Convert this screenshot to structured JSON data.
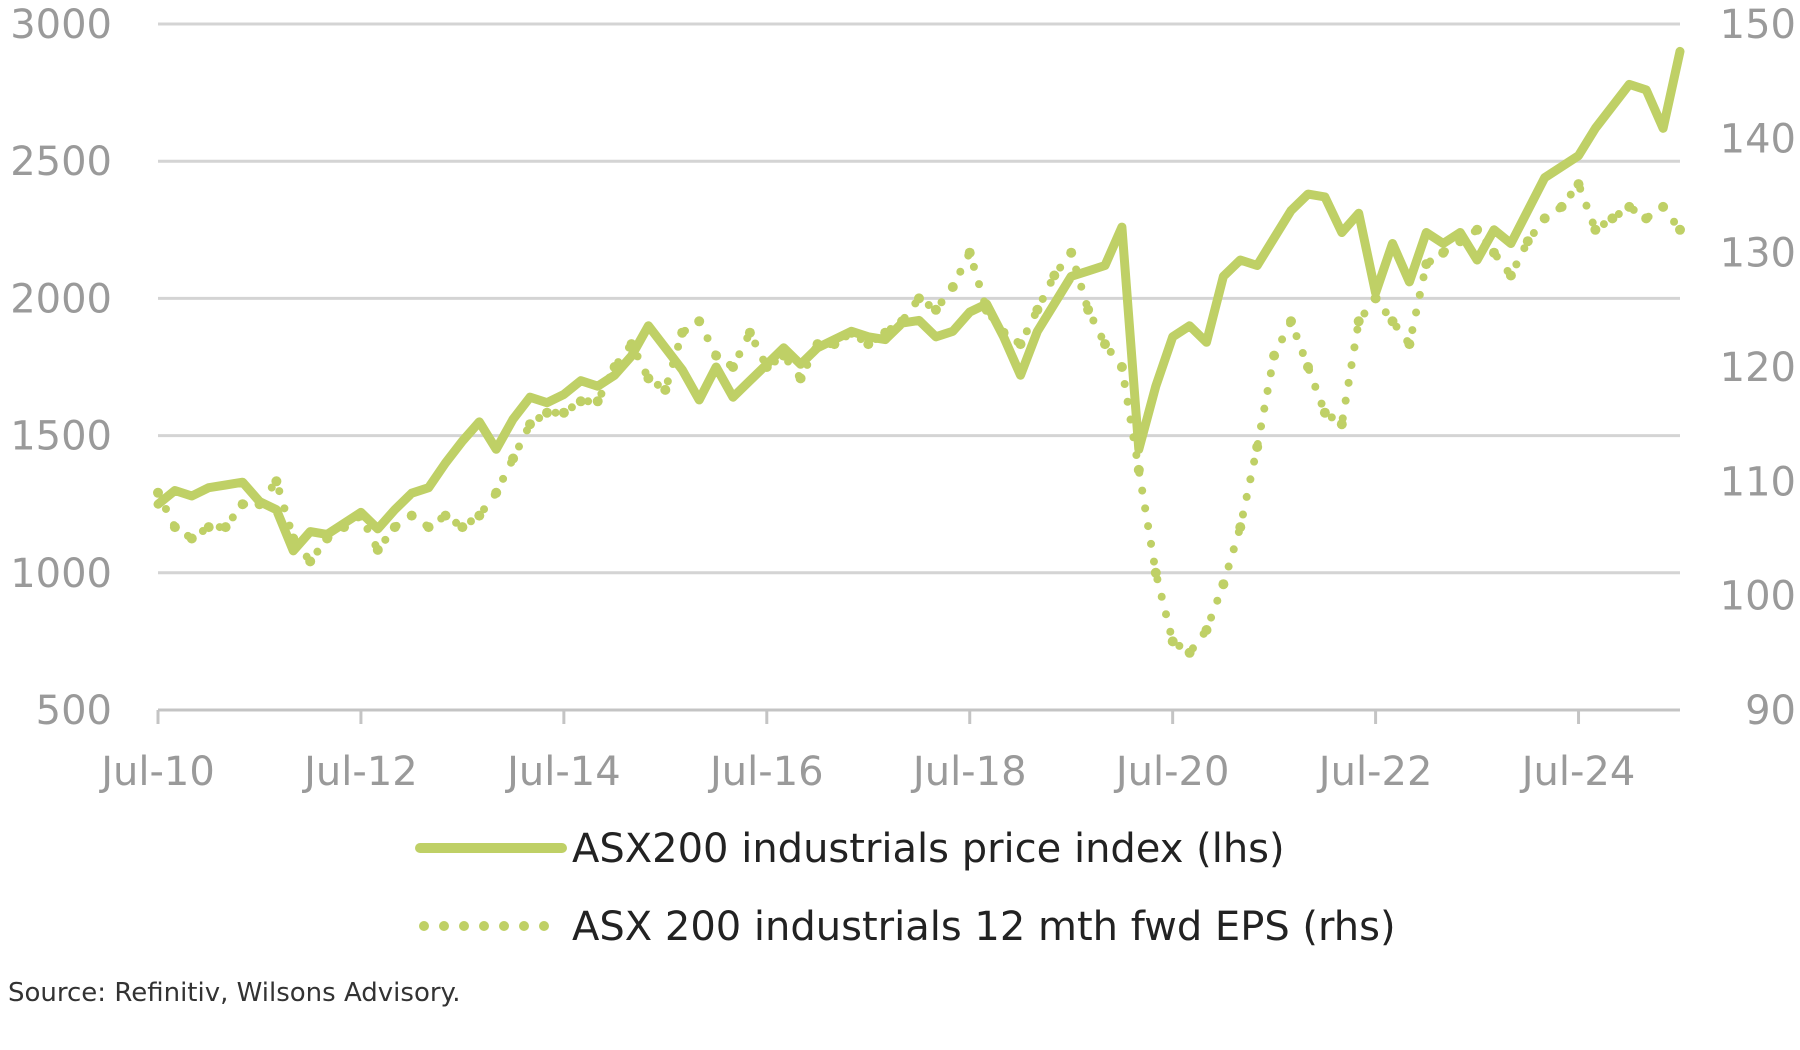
{
  "chart_data": {
    "type": "line",
    "title": "",
    "source": "Source: Refinitiv, Wilsons Advisory.",
    "x_axis": {
      "range": [
        "2010-07",
        "2025-07"
      ],
      "tick_labels": [
        "Jul-10",
        "Jul-12",
        "Jul-14",
        "Jul-16",
        "Jul-18",
        "Jul-20",
        "Jul-22",
        "Jul-24"
      ],
      "tick_dates": [
        "2010-07",
        "2012-07",
        "2014-07",
        "2016-07",
        "2018-07",
        "2020-07",
        "2022-07",
        "2024-07"
      ]
    },
    "y_left": {
      "range": [
        500,
        3000
      ],
      "ticks": [
        500,
        1000,
        1500,
        2000,
        2500,
        3000
      ]
    },
    "y_right": {
      "range": [
        90,
        150
      ],
      "ticks": [
        90,
        100,
        110,
        120,
        130,
        140,
        150
      ]
    },
    "grid": true,
    "legend_position": "bottom",
    "series": [
      {
        "name": "ASX200 industrials price index (lhs)",
        "axis": "left",
        "style": "solid",
        "color": "#bfd066",
        "points": [
          [
            "2010-07",
            1250
          ],
          [
            "2010-09",
            1300
          ],
          [
            "2010-11",
            1280
          ],
          [
            "2011-01",
            1310
          ],
          [
            "2011-03",
            1320
          ],
          [
            "2011-05",
            1330
          ],
          [
            "2011-07",
            1260
          ],
          [
            "2011-09",
            1230
          ],
          [
            "2011-11",
            1080
          ],
          [
            "2012-01",
            1150
          ],
          [
            "2012-03",
            1140
          ],
          [
            "2012-05",
            1180
          ],
          [
            "2012-07",
            1220
          ],
          [
            "2012-09",
            1160
          ],
          [
            "2012-11",
            1230
          ],
          [
            "2013-01",
            1290
          ],
          [
            "2013-03",
            1310
          ],
          [
            "2013-05",
            1400
          ],
          [
            "2013-07",
            1480
          ],
          [
            "2013-09",
            1550
          ],
          [
            "2013-11",
            1450
          ],
          [
            "2014-01",
            1560
          ],
          [
            "2014-03",
            1640
          ],
          [
            "2014-05",
            1620
          ],
          [
            "2014-07",
            1650
          ],
          [
            "2014-09",
            1700
          ],
          [
            "2014-11",
            1680
          ],
          [
            "2015-01",
            1720
          ],
          [
            "2015-03",
            1790
          ],
          [
            "2015-05",
            1900
          ],
          [
            "2015-07",
            1820
          ],
          [
            "2015-09",
            1740
          ],
          [
            "2015-11",
            1630
          ],
          [
            "2016-01",
            1750
          ],
          [
            "2016-03",
            1640
          ],
          [
            "2016-05",
            1700
          ],
          [
            "2016-07",
            1760
          ],
          [
            "2016-09",
            1820
          ],
          [
            "2016-11",
            1760
          ],
          [
            "2017-01",
            1820
          ],
          [
            "2017-03",
            1850
          ],
          [
            "2017-05",
            1880
          ],
          [
            "2017-07",
            1860
          ],
          [
            "2017-09",
            1850
          ],
          [
            "2017-11",
            1910
          ],
          [
            "2018-01",
            1920
          ],
          [
            "2018-03",
            1860
          ],
          [
            "2018-05",
            1880
          ],
          [
            "2018-07",
            1950
          ],
          [
            "2018-09",
            1980
          ],
          [
            "2018-11",
            1860
          ],
          [
            "2019-01",
            1720
          ],
          [
            "2019-03",
            1880
          ],
          [
            "2019-05",
            1980
          ],
          [
            "2019-07",
            2080
          ],
          [
            "2019-09",
            2100
          ],
          [
            "2019-11",
            2120
          ],
          [
            "2020-01",
            2260
          ],
          [
            "2020-03",
            1450
          ],
          [
            "2020-05",
            1680
          ],
          [
            "2020-07",
            1860
          ],
          [
            "2020-09",
            1900
          ],
          [
            "2020-11",
            1840
          ],
          [
            "2021-01",
            2080
          ],
          [
            "2021-03",
            2140
          ],
          [
            "2021-05",
            2120
          ],
          [
            "2021-07",
            2220
          ],
          [
            "2021-09",
            2320
          ],
          [
            "2021-11",
            2380
          ],
          [
            "2022-01",
            2370
          ],
          [
            "2022-03",
            2240
          ],
          [
            "2022-05",
            2310
          ],
          [
            "2022-07",
            2020
          ],
          [
            "2022-09",
            2200
          ],
          [
            "2022-11",
            2060
          ],
          [
            "2023-01",
            2240
          ],
          [
            "2023-03",
            2200
          ],
          [
            "2023-05",
            2240
          ],
          [
            "2023-07",
            2140
          ],
          [
            "2023-09",
            2250
          ],
          [
            "2023-11",
            2200
          ],
          [
            "2024-01",
            2320
          ],
          [
            "2024-03",
            2440
          ],
          [
            "2024-05",
            2480
          ],
          [
            "2024-07",
            2520
          ],
          [
            "2024-09",
            2620
          ],
          [
            "2024-11",
            2700
          ],
          [
            "2025-01",
            2780
          ],
          [
            "2025-03",
            2760
          ],
          [
            "2025-05",
            2620
          ],
          [
            "2025-07",
            2900
          ]
        ]
      },
      {
        "name": "ASX 200 industrials 12 mth fwd EPS (rhs)",
        "axis": "right",
        "style": "dotted",
        "color": "#bfd066",
        "points": [
          [
            "2010-07",
            109
          ],
          [
            "2010-09",
            106
          ],
          [
            "2010-11",
            105
          ],
          [
            "2011-01",
            106
          ],
          [
            "2011-03",
            106
          ],
          [
            "2011-05",
            108
          ],
          [
            "2011-07",
            108
          ],
          [
            "2011-09",
            110
          ],
          [
            "2011-11",
            105
          ],
          [
            "2012-01",
            103
          ],
          [
            "2012-03",
            105
          ],
          [
            "2012-05",
            106
          ],
          [
            "2012-07",
            107
          ],
          [
            "2012-09",
            104
          ],
          [
            "2012-11",
            106
          ],
          [
            "2013-01",
            107
          ],
          [
            "2013-03",
            106
          ],
          [
            "2013-05",
            107
          ],
          [
            "2013-07",
            106
          ],
          [
            "2013-09",
            107
          ],
          [
            "2013-11",
            109
          ],
          [
            "2014-01",
            112
          ],
          [
            "2014-03",
            115
          ],
          [
            "2014-05",
            116
          ],
          [
            "2014-07",
            116
          ],
          [
            "2014-09",
            117
          ],
          [
            "2014-11",
            117
          ],
          [
            "2015-01",
            120
          ],
          [
            "2015-03",
            122
          ],
          [
            "2015-05",
            119
          ],
          [
            "2015-07",
            118
          ],
          [
            "2015-09",
            123
          ],
          [
            "2015-11",
            124
          ],
          [
            "2016-01",
            121
          ],
          [
            "2016-03",
            120
          ],
          [
            "2016-05",
            123
          ],
          [
            "2016-07",
            120
          ],
          [
            "2016-09",
            121
          ],
          [
            "2016-11",
            119
          ],
          [
            "2017-01",
            122
          ],
          [
            "2017-03",
            122
          ],
          [
            "2017-05",
            123
          ],
          [
            "2017-07",
            122
          ],
          [
            "2017-09",
            123
          ],
          [
            "2017-11",
            124
          ],
          [
            "2018-01",
            126
          ],
          [
            "2018-03",
            125
          ],
          [
            "2018-05",
            127
          ],
          [
            "2018-07",
            130
          ],
          [
            "2018-09",
            125
          ],
          [
            "2018-11",
            123
          ],
          [
            "2019-01",
            122
          ],
          [
            "2019-03",
            125
          ],
          [
            "2019-05",
            128
          ],
          [
            "2019-07",
            130
          ],
          [
            "2019-09",
            125
          ],
          [
            "2019-11",
            122
          ],
          [
            "2020-01",
            120
          ],
          [
            "2020-03",
            111
          ],
          [
            "2020-05",
            102
          ],
          [
            "2020-07",
            96
          ],
          [
            "2020-09",
            95
          ],
          [
            "2020-11",
            97
          ],
          [
            "2021-01",
            101
          ],
          [
            "2021-03",
            106
          ],
          [
            "2021-05",
            113
          ],
          [
            "2021-07",
            121
          ],
          [
            "2021-09",
            124
          ],
          [
            "2021-11",
            120
          ],
          [
            "2022-01",
            116
          ],
          [
            "2022-03",
            115
          ],
          [
            "2022-05",
            124
          ],
          [
            "2022-07",
            126
          ],
          [
            "2022-09",
            124
          ],
          [
            "2022-11",
            122
          ],
          [
            "2023-01",
            129
          ],
          [
            "2023-03",
            130
          ],
          [
            "2023-05",
            131
          ],
          [
            "2023-07",
            132
          ],
          [
            "2023-09",
            130
          ],
          [
            "2023-11",
            128
          ],
          [
            "2024-01",
            131
          ],
          [
            "2024-03",
            133
          ],
          [
            "2024-05",
            134
          ],
          [
            "2024-07",
            136
          ],
          [
            "2024-09",
            132
          ],
          [
            "2024-11",
            133
          ],
          [
            "2025-01",
            134
          ],
          [
            "2025-03",
            133
          ],
          [
            "2025-05",
            134
          ],
          [
            "2025-07",
            132
          ]
        ]
      }
    ]
  }
}
